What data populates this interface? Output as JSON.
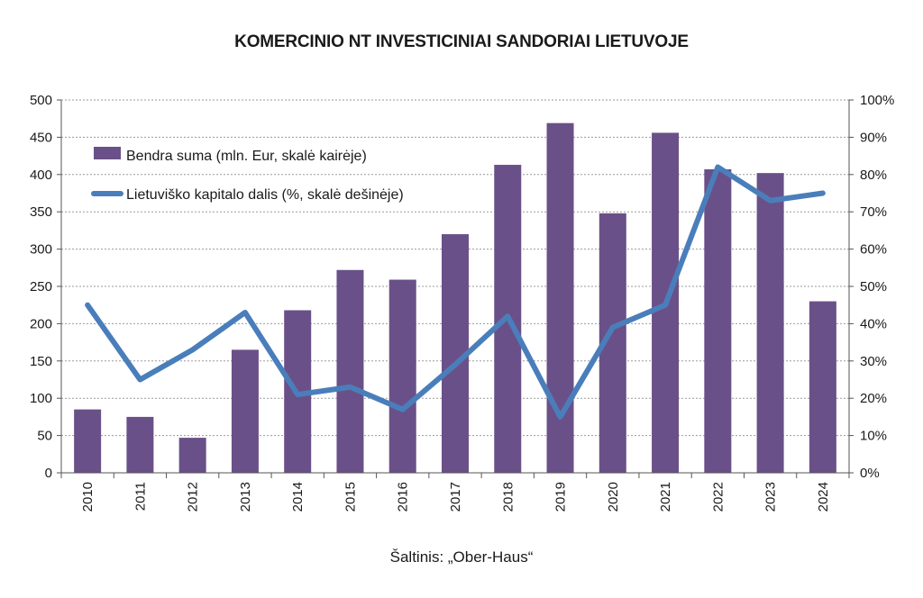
{
  "chart_data": {
    "type": "bar",
    "title": "KOMERCINIO NT INVESTICINIAI SANDORIAI LIETUVOJE",
    "categories": [
      "2010",
      "2011",
      "2012",
      "2013",
      "2014",
      "2015",
      "2016",
      "2017",
      "2018",
      "2019",
      "2020",
      "2021",
      "2022",
      "2023",
      "2024"
    ],
    "series": [
      {
        "name": "Bendra suma (mln. Eur, skalė kairėje)",
        "type": "bar",
        "axis": "left",
        "color": "#6a5088",
        "values": [
          85,
          75,
          47,
          165,
          218,
          272,
          259,
          320,
          413,
          469,
          348,
          456,
          407,
          402,
          230
        ]
      },
      {
        "name": "Lietuviško kapitalo dalis (%, skalė dešinėje)",
        "type": "line",
        "axis": "right",
        "color": "#4a7ebb",
        "values": [
          45,
          25,
          33,
          43,
          21,
          23,
          17,
          29,
          42,
          15,
          39,
          45,
          82,
          73,
          75
        ]
      }
    ],
    "y_left": {
      "min": 0,
      "max": 500,
      "step": 50,
      "ticks": [
        "0",
        "50",
        "100",
        "150",
        "200",
        "250",
        "300",
        "350",
        "400",
        "450",
        "500"
      ]
    },
    "y_right": {
      "min": 0,
      "max": 100,
      "step": 10,
      "ticks": [
        "0%",
        "10%",
        "20%",
        "30%",
        "40%",
        "50%",
        "60%",
        "70%",
        "80%",
        "90%",
        "100%"
      ]
    },
    "grid": true,
    "legend_position": "top-left",
    "source": "Šaltinis: „Ober-Haus“"
  }
}
